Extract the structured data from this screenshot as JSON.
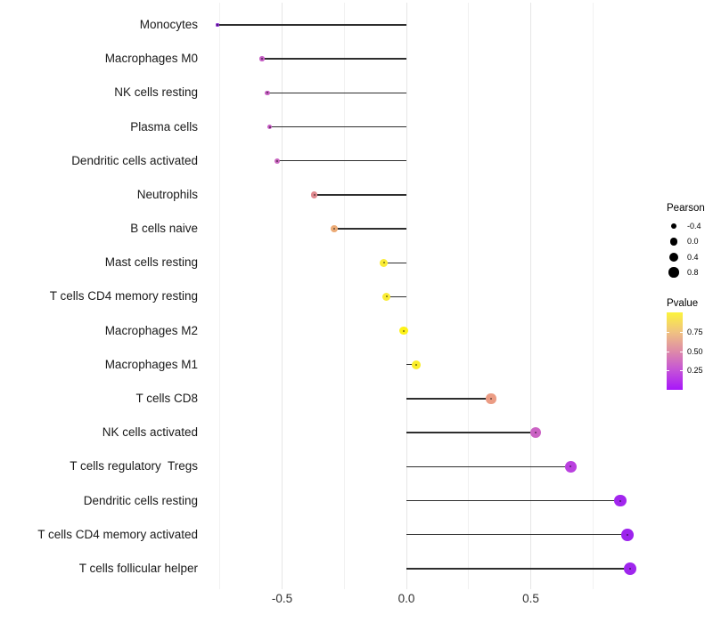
{
  "figure": {
    "background": "#ffffff"
  },
  "chart_data": {
    "type": "lollipop",
    "orientation": "horizontal",
    "title": "",
    "xlabel": "",
    "ylabel": "",
    "xlim": [
      -0.8,
      0.97
    ],
    "grid": true,
    "x_ticks": [
      {
        "label": "-0.5",
        "value": -0.5
      },
      {
        "label": "0.0",
        "value": 0.0
      },
      {
        "label": "0.5",
        "value": 0.5
      }
    ],
    "x_minor_gridlines": [
      -0.75,
      -0.25,
      0.25,
      0.75
    ],
    "categories": [
      "Monocytes",
      "Macrophages M0",
      "NK cells resting",
      "Plasma cells",
      "Dendritic cells activated",
      "Neutrophils",
      "B cells naive",
      "Mast cells resting",
      "T cells CD4 memory resting",
      "Macrophages M2",
      "Macrophages M1",
      "T cells CD8",
      "NK cells activated",
      "T cells regulatory  Tregs",
      "Dendritic cells resting",
      "T cells CD4 memory activated",
      "T cells follicular helper"
    ],
    "points": [
      {
        "label": "Monocytes",
        "pearson": -0.76,
        "pvalue_est": 0.08,
        "color": "#9233d9"
      },
      {
        "label": "Macrophages M0",
        "pearson": -0.58,
        "pvalue_est": 0.32,
        "color": "#c55ec4"
      },
      {
        "label": "NK cells resting",
        "pearson": -0.56,
        "pvalue_est": 0.33,
        "color": "#c760c3"
      },
      {
        "label": "Plasma cells",
        "pearson": -0.55,
        "pvalue_est": 0.32,
        "color": "#c65dc4"
      },
      {
        "label": "Dendritic cells activated",
        "pearson": -0.52,
        "pvalue_est": 0.35,
        "color": "#c966bf"
      },
      {
        "label": "Neutrophils",
        "pearson": -0.37,
        "pvalue_est": 0.55,
        "color": "#e18a90"
      },
      {
        "label": "B cells naive",
        "pearson": -0.29,
        "pvalue_est": 0.63,
        "color": "#ecab76"
      },
      {
        "label": "Mast cells resting",
        "pearson": -0.09,
        "pvalue_est": 0.88,
        "color": "#faec35"
      },
      {
        "label": "T cells CD4 memory resting",
        "pearson": -0.08,
        "pvalue_est": 0.88,
        "color": "#faec35"
      },
      {
        "label": "Macrophages M2",
        "pearson": -0.01,
        "pvalue_est": 0.95,
        "color": "#fdf219"
      },
      {
        "label": "Macrophages M1",
        "pearson": 0.04,
        "pvalue_est": 0.91,
        "color": "#fbee2b"
      },
      {
        "label": "T cells CD8",
        "pearson": 0.34,
        "pvalue_est": 0.57,
        "color": "#eb9c84"
      },
      {
        "label": "NK cells activated",
        "pearson": 0.52,
        "pvalue_est": 0.33,
        "color": "#cb62c4"
      },
      {
        "label": "T cells regulatory  Tregs",
        "pearson": 0.66,
        "pvalue_est": 0.18,
        "color": "#ba41df"
      },
      {
        "label": "Dendritic cells resting",
        "pearson": 0.86,
        "pvalue_est": 0.06,
        "color": "#a226ee"
      },
      {
        "label": "T cells CD4 memory activated",
        "pearson": 0.89,
        "pvalue_est": 0.05,
        "color": "#9d23ed"
      },
      {
        "label": "T cells follicular helper",
        "pearson": 0.9,
        "pvalue_est": 0.05,
        "color": "#9f26ed"
      }
    ],
    "legend_position": "right"
  },
  "legend": {
    "pearson": {
      "title": "Pearson",
      "items": [
        {
          "label": "-0.4",
          "value": -0.4,
          "size": 6.5
        },
        {
          "label": "0.0",
          "value": 0.0,
          "size": 8.5
        },
        {
          "label": "0.4",
          "value": 0.4,
          "size": 10.0
        },
        {
          "label": "0.8",
          "value": 0.8,
          "size": 11.5
        }
      ],
      "dot_color": "#000000"
    },
    "pvalue": {
      "title": "Pvalue",
      "ticks": [
        {
          "label": "0.75",
          "value": 0.75
        },
        {
          "label": "0.50",
          "value": 0.5
        },
        {
          "label": "0.25",
          "value": 0.25
        }
      ],
      "range": [
        0,
        1
      ],
      "gradient_stops": [
        "#a816fa",
        "#c452d8",
        "#de8ba8",
        "#f0c380",
        "#fcf33c"
      ]
    }
  },
  "colors": {
    "lollipop_line": "#2e2e2e",
    "grid_major": "#e6e6e6",
    "grid_minor": "#f1f1f1",
    "axis_text": "#303030",
    "category_text": "#1a1a1a"
  }
}
